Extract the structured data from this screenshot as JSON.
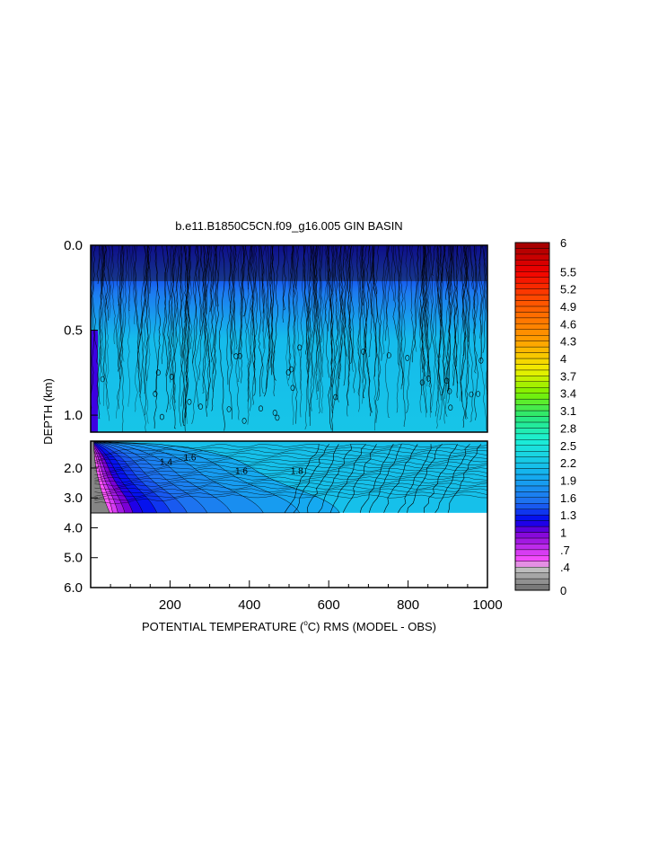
{
  "chart_data": {
    "type": "heatmap",
    "title": "b.e11.B1850C5CN.f09_g16.005 GIN BASIN",
    "xlabel_prefix": "POTENTIAL TEMPERATURE (",
    "xlabel_degree": "o",
    "xlabel_suffix": "C) RMS (MODEL - OBS)",
    "ylabel": "DEPTH (km)",
    "xlim": [
      0,
      1000
    ],
    "x_ticks": [
      {
        "value": 200,
        "label": "200"
      },
      {
        "value": 400,
        "label": "400"
      },
      {
        "value": 600,
        "label": "600"
      },
      {
        "value": 800,
        "label": "800"
      },
      {
        "value": 1000,
        "label": "1000"
      }
    ],
    "upper_panel": {
      "ylim_km": [
        0,
        1.1
      ],
      "y_ticks": [
        {
          "value": 0.0,
          "label": "0.0"
        },
        {
          "value": 0.5,
          "label": "0.5"
        },
        {
          "value": 1.0,
          "label": "1.0"
        }
      ]
    },
    "lower_panel": {
      "ylim_km": [
        1.1,
        6.0
      ],
      "data_bottom_km": 3.5,
      "y_ticks": [
        {
          "value": 2.0,
          "label": "2.0"
        },
        {
          "value": 3.0,
          "label": "3.0"
        },
        {
          "value": 4.0,
          "label": "4.0"
        },
        {
          "value": 5.0,
          "label": "5.0"
        },
        {
          "value": 6.0,
          "label": "6.0"
        }
      ]
    },
    "contour_labels": [
      {
        "text": "1.4",
        "panel": "lower",
        "x": 190,
        "depth": 1.9
      },
      {
        "text": "1.6",
        "panel": "lower",
        "x": 250,
        "depth": 1.75
      },
      {
        "text": "1.6",
        "panel": "lower",
        "x": 380,
        "depth": 2.2
      },
      {
        "text": "1.8",
        "panel": "lower",
        "x": 520,
        "depth": 2.2
      }
    ],
    "colorbar": {
      "range": [
        0,
        6
      ],
      "tick_labels": [
        "6",
        "5.5",
        "5.2",
        "4.9",
        "4.6",
        "4.3",
        "4",
        "3.7",
        "3.4",
        "3.1",
        "2.8",
        "2.5",
        "2.2",
        "1.9",
        "1.6",
        "1.3",
        "1",
        ".7",
        ".4",
        "0"
      ],
      "tick_values": [
        6,
        5.5,
        5.2,
        4.9,
        4.6,
        4.3,
        4.0,
        3.7,
        3.4,
        3.1,
        2.8,
        2.5,
        2.2,
        1.9,
        1.6,
        1.3,
        1.0,
        0.7,
        0.4,
        0
      ],
      "color_stops": [
        {
          "value": 0.0,
          "color": "#6e6e6e"
        },
        {
          "value": 0.4,
          "color": "#c8c8c8"
        },
        {
          "value": 0.5,
          "color": "#ff55ff"
        },
        {
          "value": 1.0,
          "color": "#7a00d6"
        },
        {
          "value": 1.2,
          "color": "#0000ee"
        },
        {
          "value": 1.5,
          "color": "#1e6cf0"
        },
        {
          "value": 2.0,
          "color": "#14b0f0"
        },
        {
          "value": 2.6,
          "color": "#1cf0d6"
        },
        {
          "value": 3.0,
          "color": "#28e878"
        },
        {
          "value": 3.4,
          "color": "#7af000"
        },
        {
          "value": 3.8,
          "color": "#f0f000"
        },
        {
          "value": 4.3,
          "color": "#ffa000"
        },
        {
          "value": 5.0,
          "color": "#ff5000"
        },
        {
          "value": 5.5,
          "color": "#f00000"
        },
        {
          "value": 6.0,
          "color": "#a00000"
        }
      ]
    }
  }
}
